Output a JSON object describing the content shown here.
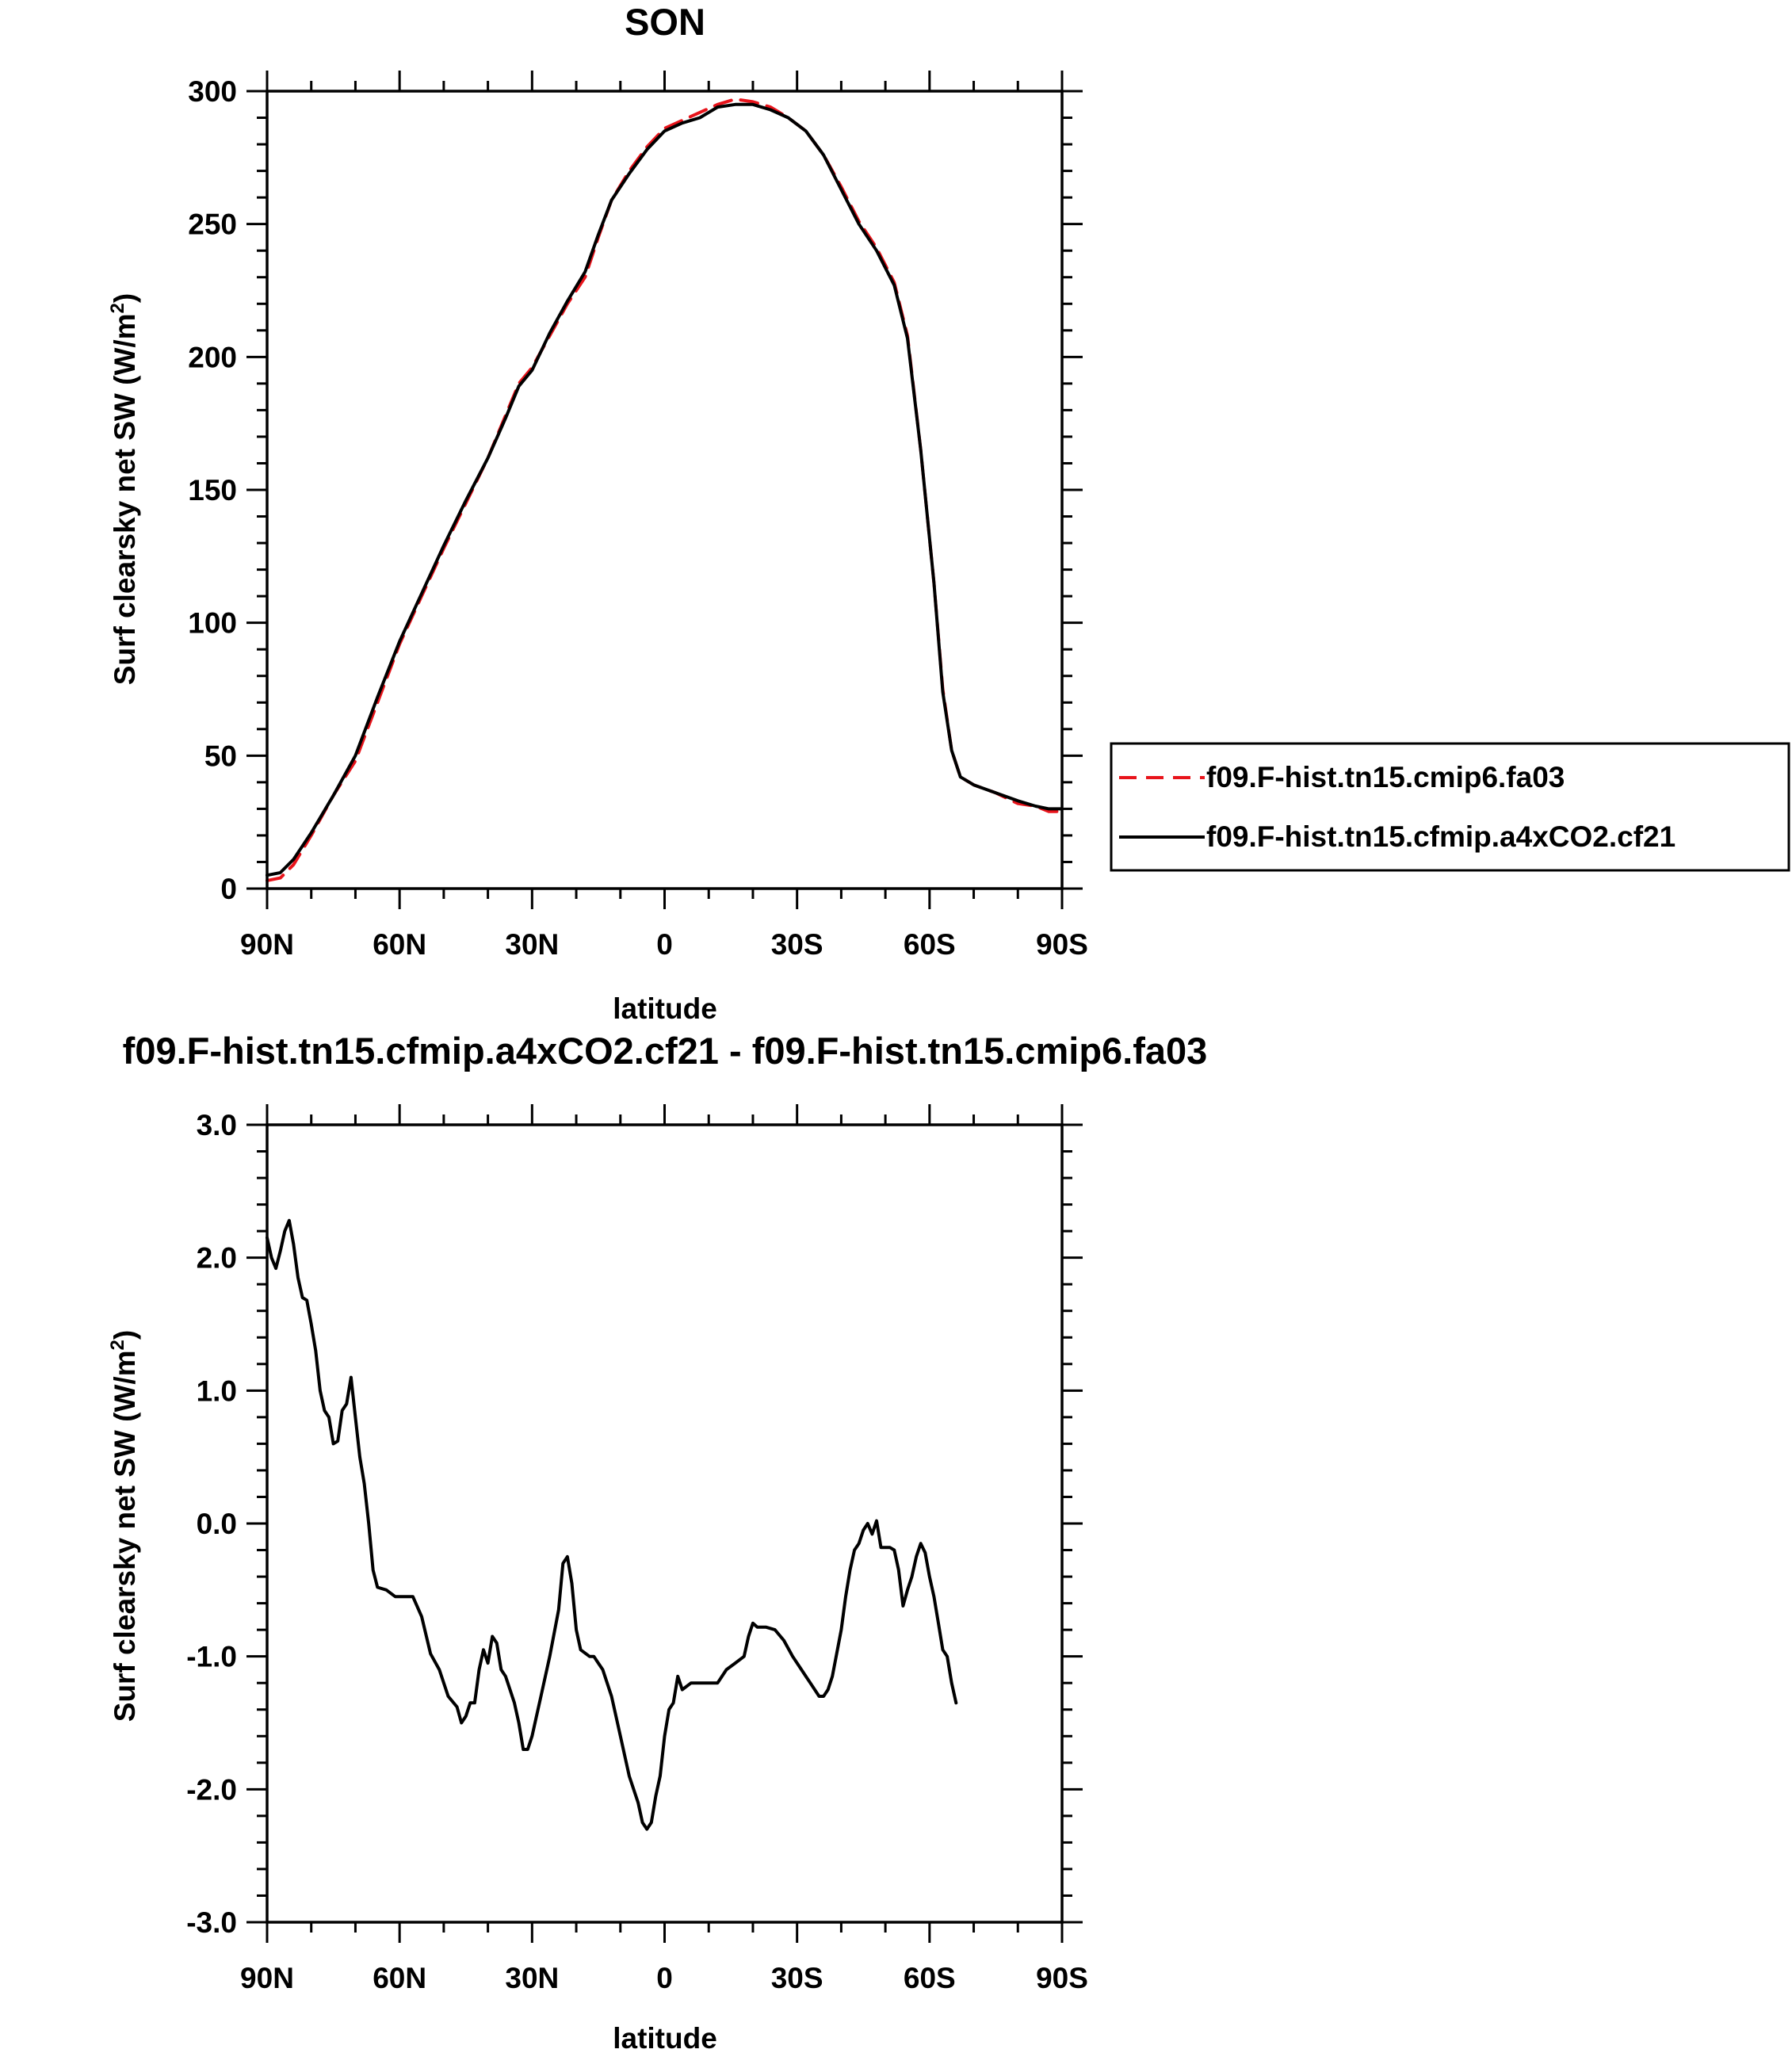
{
  "chart_data": [
    {
      "type": "line",
      "title": "SON",
      "xlabel": "latitude",
      "ylabel": "Surf clearsky net SW (W/m²)",
      "ylabel_parts": {
        "main": "Surf clearsky net SW (W/m",
        "sup": "2",
        "tail": ")"
      },
      "xlim": [
        90,
        -90
      ],
      "ylim": [
        0,
        300
      ],
      "xticks": [
        {
          "value": 90,
          "label": "90N"
        },
        {
          "value": 60,
          "label": "60N"
        },
        {
          "value": 30,
          "label": "30N"
        },
        {
          "value": 0,
          "label": "0"
        },
        {
          "value": -30,
          "label": "30S"
        },
        {
          "value": -60,
          "label": "60S"
        },
        {
          "value": -90,
          "label": "90S"
        }
      ],
      "yticks": [
        {
          "value": 0,
          "label": "0"
        },
        {
          "value": 50,
          "label": "50"
        },
        {
          "value": 100,
          "label": "100"
        },
        {
          "value": 150,
          "label": "150"
        },
        {
          "value": 200,
          "label": "200"
        },
        {
          "value": 250,
          "label": "250"
        },
        {
          "value": 300,
          "label": "300"
        }
      ],
      "legend_position": "right",
      "series": [
        {
          "name": "f09.F-hist.tn15.cmip6.fa03",
          "color": "#e8141b",
          "style": "dashed",
          "points": [
            [
              90,
              3
            ],
            [
              87,
              4
            ],
            [
              84,
              9
            ],
            [
              80,
              20
            ],
            [
              75,
              35
            ],
            [
              70,
              48
            ],
            [
              65,
              70
            ],
            [
              60,
              92
            ],
            [
              55,
              110
            ],
            [
              50,
              128
            ],
            [
              45,
              145
            ],
            [
              40,
              162
            ],
            [
              36,
              178
            ],
            [
              33,
              190
            ],
            [
              30,
              196
            ],
            [
              26,
              208
            ],
            [
              22,
              220
            ],
            [
              18,
              230
            ],
            [
              15,
              245
            ],
            [
              12,
              259
            ],
            [
              8,
              270
            ],
            [
              4,
              279
            ],
            [
              0,
              286
            ],
            [
              -4,
              289
            ],
            [
              -8,
              292
            ],
            [
              -12,
              295
            ],
            [
              -16,
              297
            ],
            [
              -20,
              296
            ],
            [
              -24,
              294
            ],
            [
              -28,
              290
            ],
            [
              -32,
              285
            ],
            [
              -36,
              276
            ],
            [
              -40,
              264
            ],
            [
              -44,
              251
            ],
            [
              -48,
              241
            ],
            [
              -52,
              228
            ],
            [
              -55,
              208
            ],
            [
              -58,
              165
            ],
            [
              -61,
              115
            ],
            [
              -63,
              75
            ],
            [
              -65,
              52
            ],
            [
              -67,
              42
            ],
            [
              -70,
              39
            ],
            [
              -75,
              36
            ],
            [
              -80,
              32
            ],
            [
              -84,
              31
            ],
            [
              -87,
              29
            ],
            [
              -90,
              29
            ]
          ]
        },
        {
          "name": "f09.F-hist.tn15.cfmip.a4xCO2.cf21",
          "color": "#000000",
          "style": "solid",
          "points": [
            [
              90,
              5
            ],
            [
              87,
              6
            ],
            [
              84,
              11
            ],
            [
              80,
              21
            ],
            [
              75,
              35
            ],
            [
              70,
              50
            ],
            [
              65,
              72
            ],
            [
              60,
              93
            ],
            [
              55,
              111
            ],
            [
              50,
              129
            ],
            [
              45,
              146
            ],
            [
              40,
              162
            ],
            [
              36,
              177
            ],
            [
              33,
              189
            ],
            [
              30,
              195
            ],
            [
              26,
              209
            ],
            [
              22,
              221
            ],
            [
              18,
              232
            ],
            [
              15,
              246
            ],
            [
              12,
              259
            ],
            [
              8,
              269
            ],
            [
              4,
              278
            ],
            [
              0,
              285
            ],
            [
              -4,
              288
            ],
            [
              -8,
              290
            ],
            [
              -12,
              294
            ],
            [
              -16,
              295
            ],
            [
              -20,
              295
            ],
            [
              -24,
              293
            ],
            [
              -28,
              290
            ],
            [
              -32,
              285
            ],
            [
              -36,
              276
            ],
            [
              -40,
              263
            ],
            [
              -44,
              250
            ],
            [
              -48,
              240
            ],
            [
              -52,
              227
            ],
            [
              -55,
              207
            ],
            [
              -58,
              165
            ],
            [
              -61,
              115
            ],
            [
              -63,
              74
            ],
            [
              -65,
              52
            ],
            [
              -67,
              42
            ],
            [
              -70,
              39
            ],
            [
              -75,
              36
            ],
            [
              -80,
              33
            ],
            [
              -84,
              31
            ],
            [
              -87,
              30
            ],
            [
              -90,
              30
            ]
          ]
        }
      ]
    },
    {
      "type": "line",
      "title": "f09.F-hist.tn15.cfmip.a4xCO2.cf21 - f09.F-hist.tn15.cmip6.fa03",
      "xlabel": "latitude",
      "ylabel": "Surf clearsky net SW (W/m²)",
      "ylabel_parts": {
        "main": "Surf clearsky net SW (W/m",
        "sup": "2",
        "tail": ")"
      },
      "xlim": [
        90,
        -90
      ],
      "ylim": [
        -3,
        3
      ],
      "xticks": [
        {
          "value": 90,
          "label": "90N"
        },
        {
          "value": 60,
          "label": "60N"
        },
        {
          "value": 30,
          "label": "30N"
        },
        {
          "value": 0,
          "label": "0"
        },
        {
          "value": -30,
          "label": "30S"
        },
        {
          "value": -60,
          "label": "60S"
        },
        {
          "value": -90,
          "label": "90S"
        }
      ],
      "yticks": [
        {
          "value": -3,
          "label": "-3.0"
        },
        {
          "value": -2,
          "label": "-2.0"
        },
        {
          "value": -1,
          "label": "-1.0"
        },
        {
          "value": 0,
          "label": "0.0"
        },
        {
          "value": 1,
          "label": "1.0"
        },
        {
          "value": 2,
          "label": "2.0"
        },
        {
          "value": 3,
          "label": "3.0"
        }
      ],
      "series": [
        {
          "color": "#000000",
          "style": "solid",
          "points": [
            [
              90,
              2.15
            ],
            [
              89,
              2.0
            ],
            [
              88,
              1.92
            ],
            [
              87,
              2.05
            ],
            [
              86,
              2.2
            ],
            [
              85,
              2.28
            ],
            [
              84,
              2.1
            ],
            [
              83,
              1.85
            ],
            [
              82,
              1.7
            ],
            [
              81,
              1.68
            ],
            [
              80,
              1.5
            ],
            [
              79,
              1.3
            ],
            [
              78,
              1.0
            ],
            [
              77,
              0.85
            ],
            [
              76,
              0.8
            ],
            [
              75,
              0.6
            ],
            [
              74,
              0.62
            ],
            [
              73,
              0.85
            ],
            [
              72,
              0.9
            ],
            [
              71,
              1.1
            ],
            [
              70,
              0.8
            ],
            [
              69,
              0.5
            ],
            [
              68,
              0.3
            ],
            [
              67,
              0.0
            ],
            [
              66,
              -0.35
            ],
            [
              65,
              -0.48
            ],
            [
              63,
              -0.5
            ],
            [
              61,
              -0.55
            ],
            [
              59,
              -0.55
            ],
            [
              57,
              -0.55
            ],
            [
              55,
              -0.7
            ],
            [
              53,
              -0.98
            ],
            [
              51,
              -1.1
            ],
            [
              49,
              -1.3
            ],
            [
              47,
              -1.38
            ],
            [
              46,
              -1.5
            ],
            [
              45,
              -1.45
            ],
            [
              44,
              -1.35
            ],
            [
              43,
              -1.35
            ],
            [
              42,
              -1.1
            ],
            [
              41,
              -0.95
            ],
            [
              40,
              -1.05
            ],
            [
              39,
              -0.85
            ],
            [
              38,
              -0.9
            ],
            [
              37,
              -1.1
            ],
            [
              36,
              -1.15
            ],
            [
              35,
              -1.25
            ],
            [
              34,
              -1.35
            ],
            [
              33,
              -1.5
            ],
            [
              32,
              -1.7
            ],
            [
              31,
              -1.7
            ],
            [
              30,
              -1.6
            ],
            [
              29,
              -1.45
            ],
            [
              28,
              -1.3
            ],
            [
              26,
              -1.0
            ],
            [
              24,
              -0.65
            ],
            [
              23,
              -0.3
            ],
            [
              22,
              -0.25
            ],
            [
              21,
              -0.45
            ],
            [
              20,
              -0.8
            ],
            [
              19,
              -0.95
            ],
            [
              17,
              -1.0
            ],
            [
              16,
              -1.0
            ],
            [
              15,
              -1.05
            ],
            [
              14,
              -1.1
            ],
            [
              12,
              -1.3
            ],
            [
              10,
              -1.6
            ],
            [
              8,
              -1.9
            ],
            [
              6,
              -2.1
            ],
            [
              5,
              -2.25
            ],
            [
              4,
              -2.3
            ],
            [
              3,
              -2.25
            ],
            [
              2,
              -2.05
            ],
            [
              1,
              -1.9
            ],
            [
              0,
              -1.6
            ],
            [
              -1,
              -1.4
            ],
            [
              -2,
              -1.35
            ],
            [
              -3,
              -1.15
            ],
            [
              -4,
              -1.25
            ],
            [
              -6,
              -1.2
            ],
            [
              -8,
              -1.2
            ],
            [
              -10,
              -1.2
            ],
            [
              -12,
              -1.2
            ],
            [
              -14,
              -1.1
            ],
            [
              -16,
              -1.05
            ],
            [
              -18,
              -1.0
            ],
            [
              -19,
              -0.85
            ],
            [
              -20,
              -0.75
            ],
            [
              -21,
              -0.78
            ],
            [
              -23,
              -0.78
            ],
            [
              -25,
              -0.8
            ],
            [
              -27,
              -0.88
            ],
            [
              -29,
              -1.0
            ],
            [
              -31,
              -1.1
            ],
            [
              -33,
              -1.2
            ],
            [
              -35,
              -1.3
            ],
            [
              -36,
              -1.3
            ],
            [
              -37,
              -1.25
            ],
            [
              -38,
              -1.15
            ],
            [
              -40,
              -0.8
            ],
            [
              -41,
              -0.55
            ],
            [
              -42,
              -0.35
            ],
            [
              -43,
              -0.2
            ],
            [
              -44,
              -0.15
            ],
            [
              -45,
              -0.05
            ],
            [
              -46,
              0.0
            ],
            [
              -47,
              -0.08
            ],
            [
              -48,
              0.02
            ],
            [
              -49,
              -0.18
            ],
            [
              -51,
              -0.18
            ],
            [
              -52,
              -0.2
            ],
            [
              -53,
              -0.35
            ],
            [
              -54,
              -0.62
            ],
            [
              -55,
              -0.5
            ],
            [
              -56,
              -0.4
            ],
            [
              -57,
              -0.25
            ],
            [
              -58,
              -0.15
            ],
            [
              -59,
              -0.22
            ],
            [
              -60,
              -0.4
            ],
            [
              -61,
              -0.55
            ],
            [
              -62,
              -0.75
            ],
            [
              -63,
              -0.95
            ],
            [
              -64,
              -1.0
            ],
            [
              -65,
              -1.2
            ],
            [
              -66,
              -1.35
            ]
          ]
        }
      ]
    }
  ]
}
